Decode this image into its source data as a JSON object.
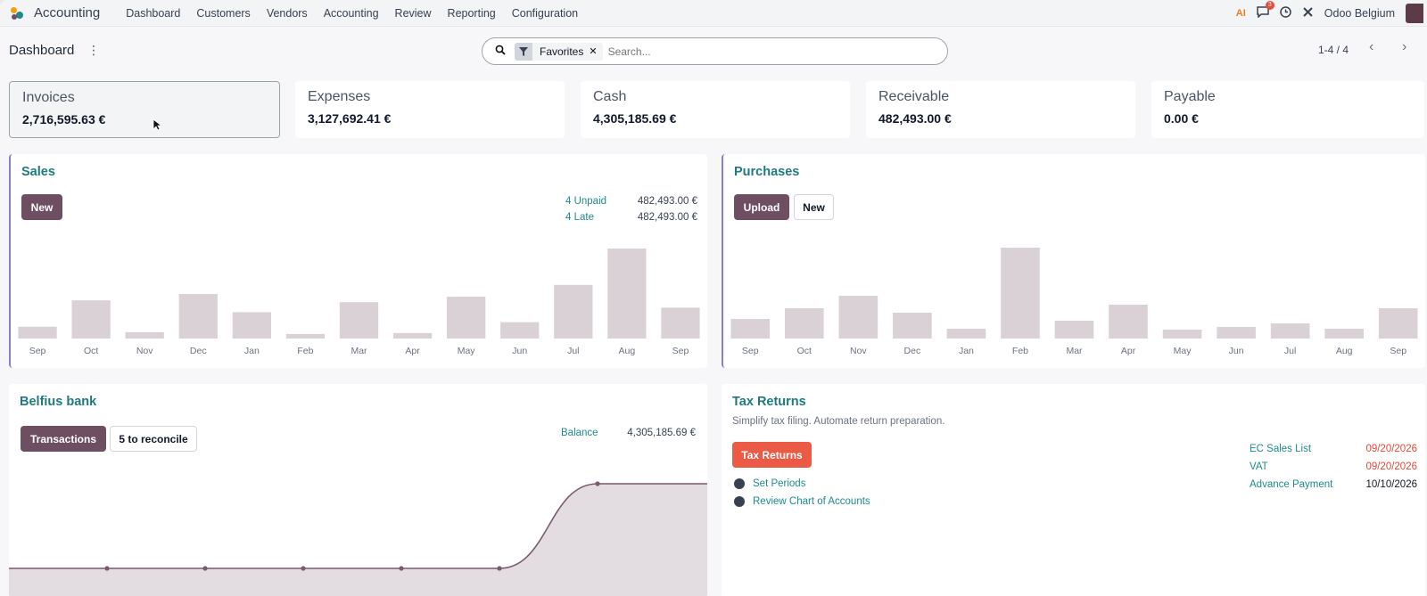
{
  "nav": {
    "app_name": "Accounting",
    "menu": [
      "Dashboard",
      "Customers",
      "Vendors",
      "Accounting",
      "Review",
      "Reporting",
      "Configuration"
    ],
    "ai_label": "AI",
    "messages_count": "3",
    "company": "Odoo Belgium"
  },
  "control": {
    "breadcrumb": "Dashboard",
    "facet_label": "Favorites",
    "search_placeholder": "Search...",
    "pager": "1-4 / 4"
  },
  "kpis": [
    {
      "title": "Invoices",
      "value": "2,716,595.63 €"
    },
    {
      "title": "Expenses",
      "value": "3,127,692.41 €"
    },
    {
      "title": "Cash",
      "value": "4,305,185.69 €"
    },
    {
      "title": "Receivable",
      "value": "482,493.00 €"
    },
    {
      "title": "Payable",
      "value": "0.00 €"
    }
  ],
  "sales": {
    "title": "Sales",
    "new_label": "New",
    "unpaid_label": "4 Unpaid",
    "unpaid_value": "482,493.00 €",
    "late_label": "4 Late",
    "late_value": "482,493.00 €",
    "chart": {
      "type": "bar",
      "categories": [
        "Sep",
        "Oct",
        "Nov",
        "Dec",
        "Jan",
        "Feb",
        "Mar",
        "Apr",
        "May",
        "Jun",
        "Jul",
        "Aug",
        "Sep"
      ],
      "values": [
        13,
        42,
        7,
        49,
        29,
        5,
        40,
        6,
        46,
        18,
        59,
        99,
        34
      ]
    }
  },
  "purchases": {
    "title": "Purchases",
    "upload_label": "Upload",
    "new_label": "New",
    "chart": {
      "type": "bar",
      "categories": [
        "Sep",
        "Oct",
        "Nov",
        "Dec",
        "Jan",
        "Feb",
        "Mar",
        "Apr",
        "May",
        "Jun",
        "Jul",
        "Aug",
        "Sep"
      ],
      "values": [
        22,
        34,
        48,
        29,
        11,
        102,
        20,
        38,
        10,
        13,
        17,
        11,
        34
      ]
    }
  },
  "bank": {
    "title": "Belfius bank",
    "transactions_label": "Transactions",
    "reconcile_label": "5 to reconcile",
    "balance_label": "Balance",
    "balance_value": "4,305,185.69 €",
    "chart": {
      "type": "area",
      "values": [
        0,
        0,
        0,
        0,
        0,
        0,
        4305185.69,
        4305185.69
      ]
    }
  },
  "tax": {
    "title": "Tax Returns",
    "subtitle": "Simplify tax filing. Automate return preparation.",
    "button_label": "Tax Returns",
    "todos": [
      "Set Periods",
      "Review Chart of Accounts"
    ],
    "deadlines": [
      {
        "label": "EC Sales List",
        "date": "09/20/2026",
        "overdue": true
      },
      {
        "label": "VAT",
        "date": "09/20/2026",
        "overdue": true
      },
      {
        "label": "Advance Payment",
        "date": "10/10/2026",
        "overdue": false
      }
    ]
  },
  "chart_data": [
    {
      "type": "bar",
      "categories": [
        "Sep",
        "Oct",
        "Nov",
        "Dec",
        "Jan",
        "Feb",
        "Mar",
        "Apr",
        "May",
        "Jun",
        "Jul",
        "Aug",
        "Sep"
      ],
      "values": [
        13,
        42,
        7,
        49,
        29,
        5,
        40,
        6,
        46,
        18,
        59,
        99,
        34
      ]
    },
    {
      "type": "bar",
      "categories": [
        "Sep",
        "Oct",
        "Nov",
        "Dec",
        "Jan",
        "Feb",
        "Mar",
        "Apr",
        "May",
        "Jun",
        "Jul",
        "Aug",
        "Sep"
      ],
      "values": [
        22,
        34,
        48,
        29,
        11,
        102,
        20,
        38,
        10,
        13,
        17,
        11,
        34
      ]
    },
    {
      "type": "area",
      "values": [
        0,
        0,
        0,
        0,
        0,
        0,
        4305185.69,
        4305185.69
      ]
    }
  ],
  "colors": {
    "primary": "#6e4f62",
    "accent_teal": "#1f8a8a",
    "danger": "#ea5a45",
    "bar": "#d9d1d6",
    "overdue": "#e0493a"
  }
}
